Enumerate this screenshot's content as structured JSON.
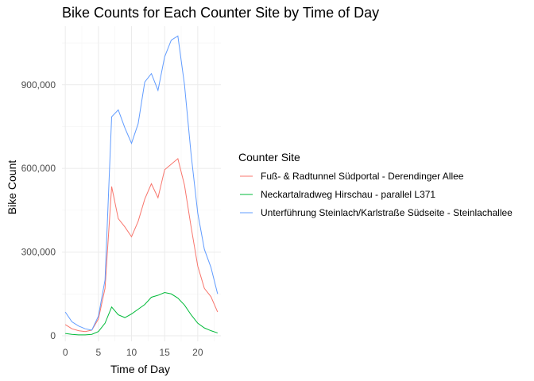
{
  "chart_data": {
    "type": "line",
    "title": "Bike Counts for Each Counter Site by Time of Day",
    "xlabel": "Time of Day",
    "ylabel": "Bike Count",
    "x": [
      0,
      1,
      2,
      3,
      4,
      5,
      6,
      7,
      8,
      9,
      10,
      11,
      12,
      13,
      14,
      15,
      16,
      17,
      18,
      19,
      20,
      21,
      22,
      23
    ],
    "xlim": [
      -0.5,
      23.5
    ],
    "ylim": [
      -20000,
      1110000
    ],
    "x_ticks": [
      0,
      5,
      10,
      15,
      20
    ],
    "x_tick_labels": [
      "0",
      "5",
      "10",
      "15",
      "20"
    ],
    "y_ticks": [
      0,
      300000,
      600000,
      900000
    ],
    "y_tick_labels": [
      "0",
      "300,000",
      "600,000",
      "900,000"
    ],
    "grid": true,
    "legend": {
      "title": "Counter Site",
      "position": "right"
    },
    "series": [
      {
        "name": "Fuß- & Radtunnel Südportal - Derendinger Allee",
        "color": "#F8766D",
        "values": [
          40000,
          25000,
          18000,
          15000,
          20000,
          60000,
          170000,
          535000,
          420000,
          390000,
          355000,
          410000,
          490000,
          545000,
          495000,
          595000,
          615000,
          635000,
          540000,
          390000,
          250000,
          170000,
          140000,
          85000
        ]
      },
      {
        "name": "Neckartalradweg Hirschau - parallel L371",
        "color": "#00BA38",
        "values": [
          8000,
          5000,
          3000,
          3000,
          5000,
          15000,
          45000,
          103000,
          75000,
          65000,
          78000,
          95000,
          112000,
          138000,
          145000,
          155000,
          150000,
          135000,
          110000,
          75000,
          45000,
          28000,
          18000,
          10000
        ]
      },
      {
        "name": "Unterführung Steinlach/Karlstraße Südseite - Steinlachallee",
        "color": "#619CFF",
        "values": [
          85000,
          50000,
          35000,
          25000,
          20000,
          70000,
          200000,
          785000,
          810000,
          745000,
          690000,
          760000,
          910000,
          940000,
          880000,
          1000000,
          1060000,
          1075000,
          900000,
          650000,
          440000,
          310000,
          245000,
          150000
        ]
      }
    ]
  }
}
